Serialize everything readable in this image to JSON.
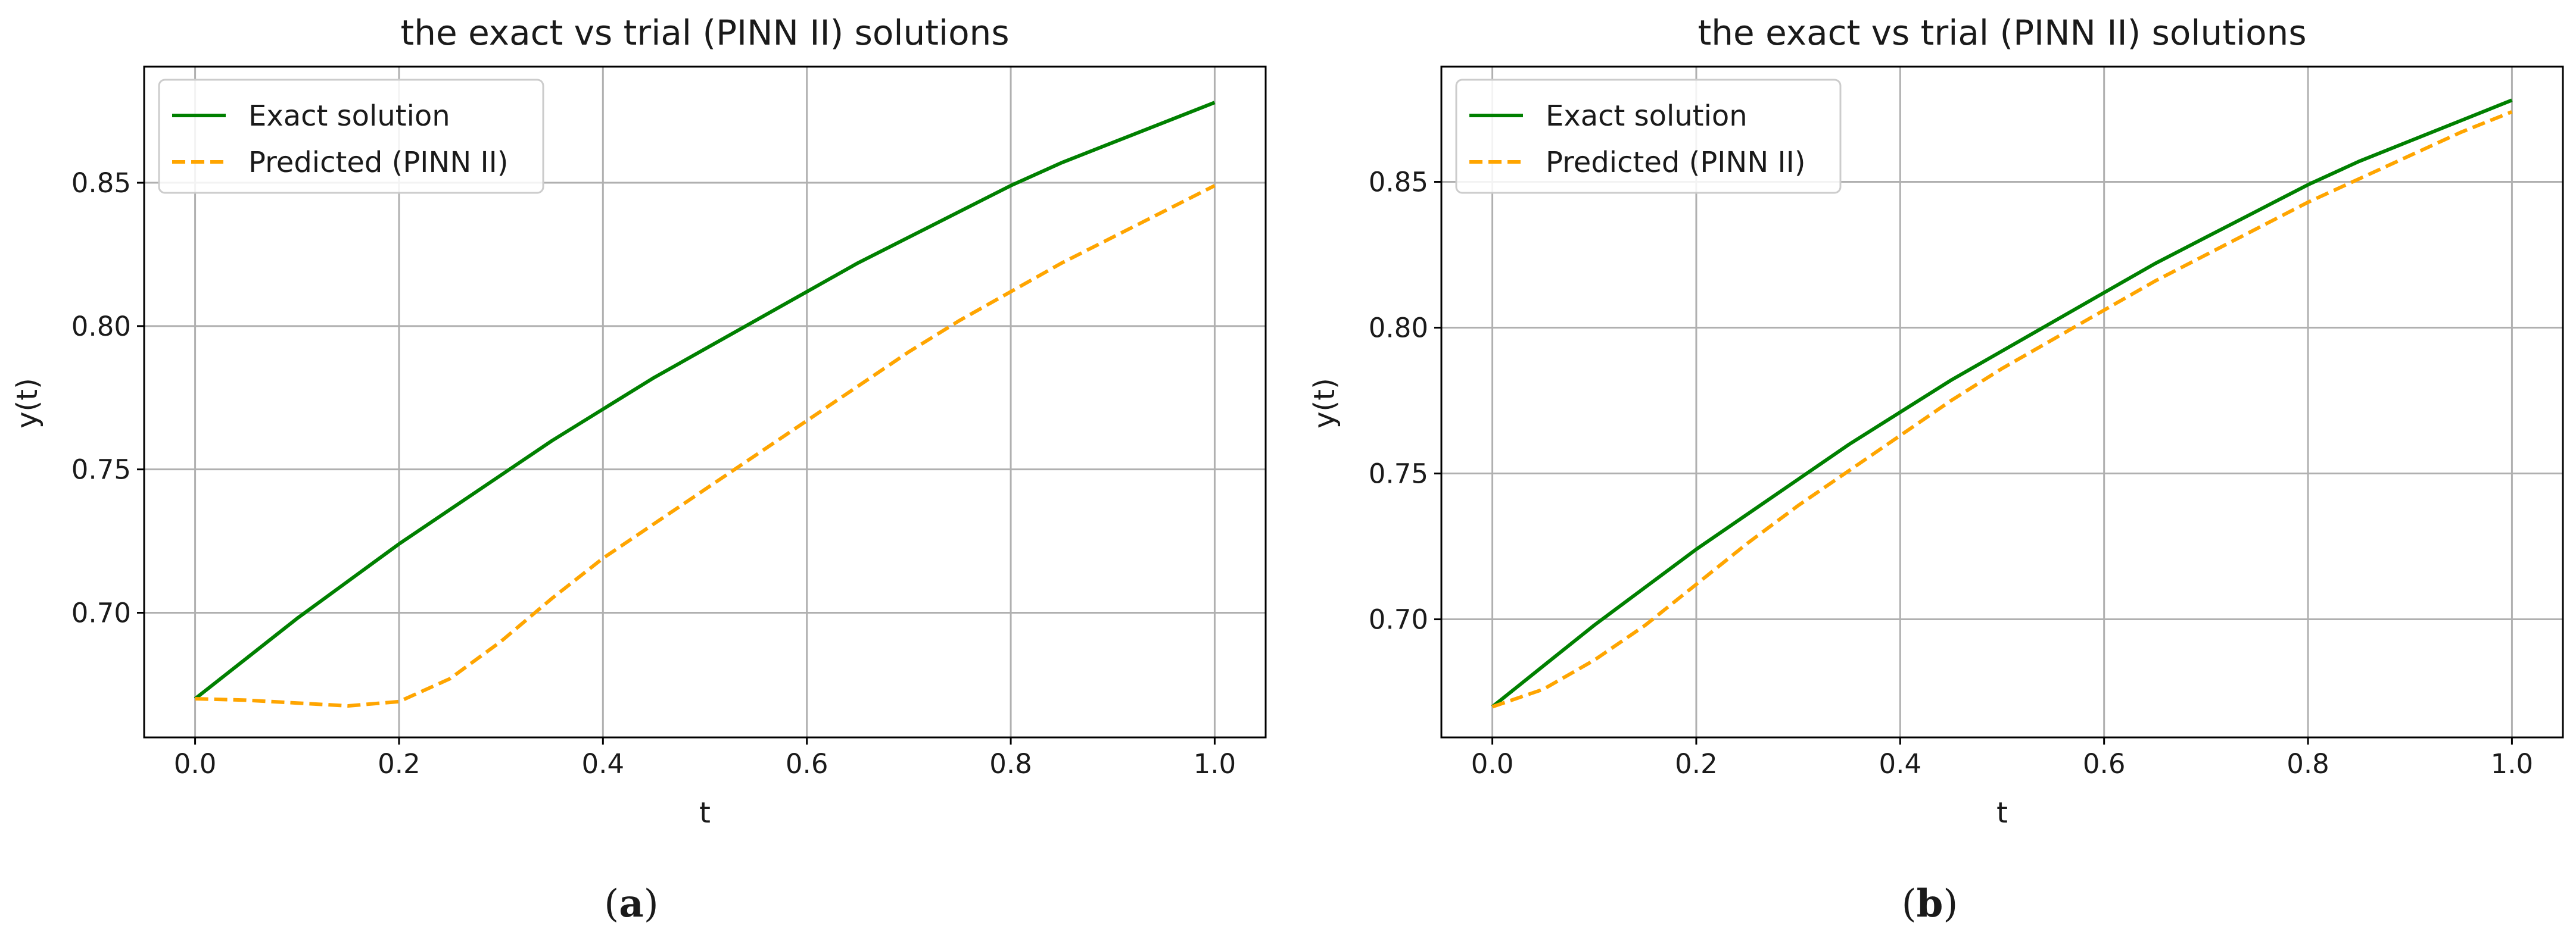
{
  "chart_data": [
    {
      "type": "line",
      "title": "the exact vs trial (PINN II) solutions",
      "xlabel": "t",
      "ylabel": "y(t)",
      "caption": {
        "open": "(",
        "letter": "a",
        "close": ")"
      },
      "xlim": [
        -0.05,
        1.05
      ],
      "ylim": [
        0.6565,
        0.8905
      ],
      "xticks": [
        "0.0",
        "0.2",
        "0.4",
        "0.6",
        "0.8",
        "1.0"
      ],
      "yticks": [
        "0.70",
        "0.75",
        "0.80",
        "0.85"
      ],
      "grid": true,
      "legend": "top-left",
      "x": [
        0.0,
        0.05,
        0.1,
        0.15,
        0.2,
        0.25,
        0.3,
        0.35,
        0.4,
        0.45,
        0.5,
        0.55,
        0.6,
        0.65,
        0.7,
        0.75,
        0.8,
        0.85,
        0.9,
        0.95,
        1.0
      ],
      "series": [
        {
          "name": "Exact solution",
          "color": "#008000",
          "style": "solid",
          "values": [
            0.67,
            0.684,
            0.698,
            0.711,
            0.724,
            0.736,
            0.748,
            0.76,
            0.771,
            0.782,
            0.792,
            0.802,
            0.812,
            0.822,
            0.831,
            0.84,
            0.849,
            0.857,
            0.864,
            0.871,
            0.878
          ]
        },
        {
          "name": "Predicted (PINN II)",
          "color": "#FFA500",
          "style": "dashed",
          "values": [
            0.67,
            0.6695,
            0.6685,
            0.6675,
            0.669,
            0.677,
            0.69,
            0.705,
            0.719,
            0.731,
            0.743,
            0.755,
            0.767,
            0.779,
            0.791,
            0.802,
            0.812,
            0.822,
            0.831,
            0.84,
            0.849
          ]
        }
      ]
    },
    {
      "type": "line",
      "title": "the exact vs trial (PINN II) solutions",
      "xlabel": "t",
      "ylabel": "y(t)",
      "caption": {
        "open": "(",
        "letter": "b",
        "close": ")"
      },
      "xlim": [
        -0.05,
        1.05
      ],
      "ylim": [
        0.6595,
        0.8895
      ],
      "xticks": [
        "0.0",
        "0.2",
        "0.4",
        "0.6",
        "0.8",
        "1.0"
      ],
      "yticks": [
        "0.70",
        "0.75",
        "0.80",
        "0.85"
      ],
      "grid": true,
      "legend": "top-left",
      "x": [
        0.0,
        0.05,
        0.1,
        0.15,
        0.2,
        0.25,
        0.3,
        0.35,
        0.4,
        0.45,
        0.5,
        0.55,
        0.6,
        0.65,
        0.7,
        0.75,
        0.8,
        0.85,
        0.9,
        0.95,
        1.0
      ],
      "series": [
        {
          "name": "Exact solution",
          "color": "#008000",
          "style": "solid",
          "values": [
            0.67,
            0.684,
            0.698,
            0.711,
            0.724,
            0.736,
            0.748,
            0.76,
            0.771,
            0.782,
            0.792,
            0.802,
            0.812,
            0.822,
            0.831,
            0.84,
            0.849,
            0.857,
            0.864,
            0.871,
            0.878
          ]
        },
        {
          "name": "Predicted (PINN II)",
          "color": "#FFA500",
          "style": "dashed",
          "values": [
            0.67,
            0.676,
            0.686,
            0.698,
            0.712,
            0.726,
            0.739,
            0.751,
            0.763,
            0.775,
            0.786,
            0.796,
            0.806,
            0.816,
            0.825,
            0.834,
            0.843,
            0.851,
            0.859,
            0.867,
            0.874
          ]
        }
      ]
    }
  ]
}
